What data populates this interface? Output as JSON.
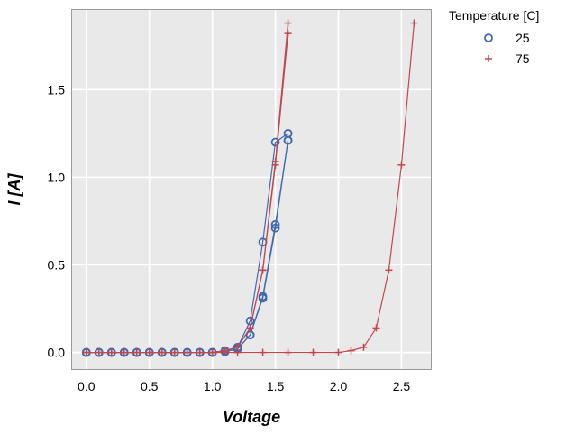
{
  "chart_data": {
    "type": "line",
    "title": "",
    "xlabel": "Voltage",
    "ylabel": "I [A]",
    "xlim": [
      -0.12,
      2.74
    ],
    "ylim": [
      -0.1,
      1.96
    ],
    "xticks": [
      0.0,
      0.5,
      1.0,
      1.5,
      2.0,
      2.5
    ],
    "xtick_labels": [
      "0.0",
      "0.5",
      "1.0",
      "1.5",
      "2.0",
      "2.5"
    ],
    "yticks": [
      0.0,
      0.5,
      1.0,
      1.5
    ],
    "ytick_labels": [
      "0.0",
      "0.5",
      "1.0",
      "1.5"
    ],
    "grid": true,
    "legend": {
      "title": "Temperature [C]",
      "placement": "outside-top-right",
      "entries": [
        "25",
        "75"
      ]
    },
    "series": [
      {
        "name": "25",
        "color": "#4169b0",
        "marker": "circle",
        "x": [
          0.0,
          0.1,
          0.2,
          0.3,
          0.4,
          0.5,
          0.6,
          0.7,
          0.8,
          0.9,
          1.0,
          1.1,
          1.2,
          1.3,
          1.4,
          1.5,
          1.6
        ],
        "y": [
          0.0,
          0.0,
          0.0,
          0.0,
          0.0,
          0.0,
          0.0,
          0.0,
          0.0,
          0.0,
          0.0,
          0.01,
          0.03,
          0.18,
          0.63,
          1.2,
          1.25
        ]
      },
      {
        "name": "25",
        "color": "#4169b0",
        "marker": "circle",
        "x": [
          0.0,
          0.1,
          0.2,
          0.3,
          0.4,
          0.5,
          0.6,
          0.7,
          0.8,
          0.9,
          1.0,
          1.1,
          1.2,
          1.3,
          1.4,
          1.5,
          1.6
        ],
        "y": [
          0.0,
          0.0,
          0.0,
          0.0,
          0.0,
          0.0,
          0.0,
          0.0,
          0.0,
          0.0,
          0.0,
          0.005,
          0.02,
          0.1,
          0.31,
          0.71,
          1.21
        ]
      },
      {
        "name": "25",
        "color": "#4169b0",
        "marker": "circle",
        "x": [
          0.0,
          0.1,
          0.2,
          0.3,
          0.4,
          0.5,
          0.6,
          0.7,
          0.8,
          0.9,
          1.0,
          1.1,
          1.2,
          1.3,
          1.4,
          1.5,
          1.6
        ],
        "y": [
          0.0,
          0.0,
          0.0,
          0.0,
          0.0,
          0.0,
          0.0,
          0.0,
          0.0,
          0.0,
          0.0,
          0.005,
          0.02,
          0.1,
          0.32,
          0.73,
          1.21
        ]
      },
      {
        "name": "75",
        "color": "#c2474b",
        "marker": "plus",
        "x": [
          0.0,
          0.1,
          0.2,
          0.3,
          0.4,
          0.5,
          0.6,
          0.7,
          0.8,
          0.9,
          1.0,
          1.1,
          1.2,
          1.3,
          1.4,
          1.5,
          1.6
        ],
        "y": [
          0.0,
          0.0,
          0.0,
          0.0,
          0.0,
          0.0,
          0.0,
          0.0,
          0.0,
          0.0,
          0.0,
          0.01,
          0.03,
          0.14,
          0.47,
          1.07,
          1.82
        ]
      },
      {
        "name": "75",
        "color": "#c2474b",
        "marker": "plus",
        "x": [
          0.0,
          0.1,
          0.2,
          0.3,
          0.4,
          0.5,
          0.6,
          0.7,
          0.8,
          0.9,
          1.0,
          1.1,
          1.2,
          1.3,
          1.4,
          1.5,
          1.6
        ],
        "y": [
          0.0,
          0.0,
          0.0,
          0.0,
          0.0,
          0.0,
          0.0,
          0.0,
          0.0,
          0.0,
          0.0,
          0.01,
          0.03,
          0.14,
          0.47,
          1.09,
          1.88
        ]
      },
      {
        "name": "75",
        "color": "#c2474b",
        "marker": "plus",
        "x": [
          0.0,
          0.2,
          0.4,
          0.6,
          0.8,
          1.0,
          1.2,
          1.4,
          1.6,
          1.8,
          2.0,
          2.1,
          2.2,
          2.3,
          2.4,
          2.5,
          2.6
        ],
        "y": [
          0.0,
          0.0,
          0.0,
          0.0,
          0.0,
          0.0,
          0.0,
          0.0,
          0.0,
          0.0,
          0.0,
          0.01,
          0.03,
          0.14,
          0.47,
          1.07,
          1.88
        ]
      }
    ]
  }
}
